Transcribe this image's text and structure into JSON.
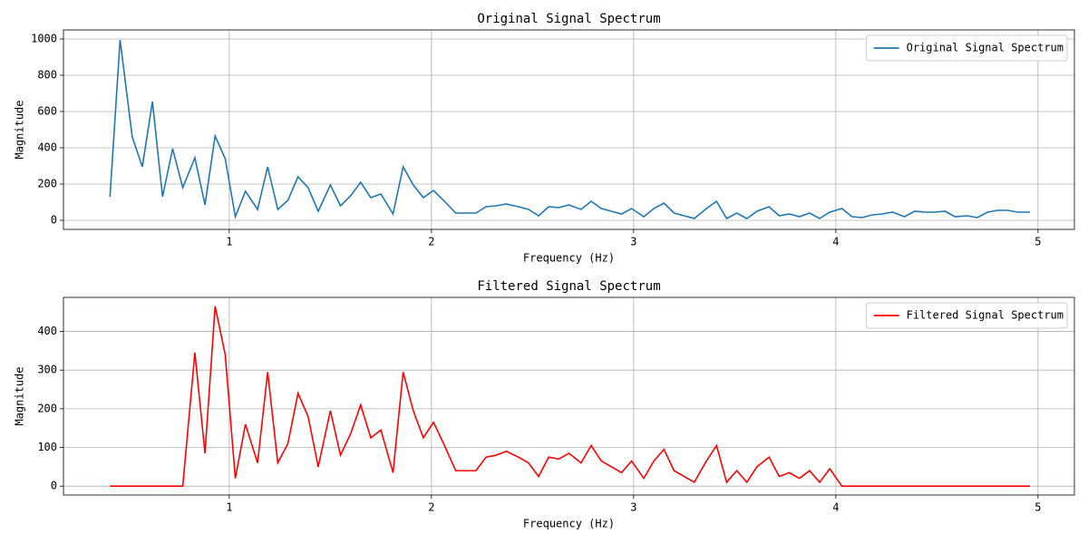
{
  "chart_data": [
    {
      "type": "line",
      "title": "Original Signal Spectrum",
      "x_label": "Frequency (Hz)",
      "y_label": "Magnitude",
      "x": [
        0.41,
        0.46,
        0.52,
        0.57,
        0.62,
        0.67,
        0.72,
        0.77,
        0.83,
        0.88,
        0.93,
        0.98,
        1.03,
        1.08,
        1.14,
        1.19,
        1.24,
        1.29,
        1.34,
        1.39,
        1.44,
        1.5,
        1.55,
        1.6,
        1.65,
        1.7,
        1.75,
        1.81,
        1.86,
        1.91,
        1.96,
        2.01,
        2.06,
        2.12,
        2.17,
        2.22,
        2.27,
        2.32,
        2.37,
        2.43,
        2.48,
        2.53,
        2.58,
        2.63,
        2.68,
        2.74,
        2.79,
        2.84,
        2.89,
        2.94,
        2.99,
        3.05,
        3.1,
        3.15,
        3.2,
        3.25,
        3.3,
        3.36,
        3.41,
        3.46,
        3.51,
        3.56,
        3.61,
        3.67,
        3.72,
        3.77,
        3.82,
        3.87,
        3.92,
        3.97,
        4.03,
        4.08,
        4.13,
        4.18,
        4.23,
        4.28,
        4.34,
        4.39,
        4.44,
        4.49,
        4.54,
        4.59,
        4.65,
        4.7,
        4.75,
        4.8,
        4.85,
        4.9,
        4.96
      ],
      "series": [
        {
          "name": "Original Signal Spectrum",
          "color": "#1f77b4",
          "values": [
            130,
            995,
            460,
            295,
            655,
            130,
            395,
            180,
            345,
            85,
            465,
            340,
            20,
            160,
            60,
            295,
            60,
            110,
            240,
            180,
            50,
            195,
            80,
            135,
            210,
            125,
            145,
            35,
            295,
            195,
            125,
            165,
            110,
            40,
            40,
            40,
            75,
            80,
            90,
            75,
            60,
            25,
            75,
            70,
            85,
            60,
            105,
            65,
            50,
            35,
            65,
            20,
            65,
            95,
            40,
            25,
            10,
            65,
            105,
            10,
            40,
            10,
            50,
            75,
            25,
            35,
            20,
            40,
            10,
            45,
            65,
            20,
            15,
            30,
            35,
            45,
            20,
            50,
            45,
            45,
            50,
            20,
            25,
            15,
            45,
            55,
            55,
            45,
            45
          ]
        }
      ],
      "xlim": [
        0.18,
        5.18
      ],
      "ylim": [
        -50,
        1050
      ],
      "xticks": [
        1,
        2,
        3,
        4,
        5
      ],
      "yticks": [
        0,
        200,
        400,
        600,
        800,
        1000
      ],
      "grid": true,
      "legend": "upper right"
    },
    {
      "type": "line",
      "title": "Filtered Signal Spectrum",
      "x_label": "Frequency (Hz)",
      "y_label": "Magnitude",
      "x": [
        0.41,
        0.46,
        0.52,
        0.57,
        0.62,
        0.67,
        0.72,
        0.77,
        0.83,
        0.88,
        0.93,
        0.98,
        1.03,
        1.08,
        1.14,
        1.19,
        1.24,
        1.29,
        1.34,
        1.39,
        1.44,
        1.5,
        1.55,
        1.6,
        1.65,
        1.7,
        1.75,
        1.81,
        1.86,
        1.91,
        1.96,
        2.01,
        2.06,
        2.12,
        2.17,
        2.22,
        2.27,
        2.32,
        2.37,
        2.43,
        2.48,
        2.53,
        2.58,
        2.63,
        2.68,
        2.74,
        2.79,
        2.84,
        2.89,
        2.94,
        2.99,
        3.05,
        3.1,
        3.15,
        3.2,
        3.25,
        3.3,
        3.36,
        3.41,
        3.46,
        3.51,
        3.56,
        3.61,
        3.67,
        3.72,
        3.77,
        3.82,
        3.87,
        3.92,
        3.97,
        4.03,
        4.08,
        4.13,
        4.18,
        4.23,
        4.28,
        4.34,
        4.39,
        4.44,
        4.49,
        4.54,
        4.59,
        4.65,
        4.7,
        4.75,
        4.8,
        4.85,
        4.9,
        4.96
      ],
      "series": [
        {
          "name": "Filtered Signal Spectrum",
          "color": "#ff0000",
          "values": [
            0,
            0,
            0,
            0,
            0,
            0,
            0,
            0,
            345,
            85,
            465,
            340,
            20,
            160,
            60,
            295,
            60,
            110,
            240,
            180,
            50,
            195,
            80,
            135,
            210,
            125,
            145,
            35,
            295,
            195,
            125,
            165,
            110,
            40,
            40,
            40,
            75,
            80,
            90,
            75,
            60,
            25,
            75,
            70,
            85,
            60,
            105,
            65,
            50,
            35,
            65,
            20,
            65,
            95,
            40,
            25,
            10,
            65,
            105,
            10,
            40,
            10,
            50,
            75,
            25,
            35,
            20,
            40,
            10,
            45,
            0,
            0,
            0,
            0,
            0,
            0,
            0,
            0,
            0,
            0,
            0,
            0,
            0,
            0,
            0,
            0,
            0,
            0,
            0
          ]
        }
      ],
      "xlim": [
        0.18,
        5.18
      ],
      "ylim": [
        -23,
        488
      ],
      "xticks": [
        1,
        2,
        3,
        4,
        5
      ],
      "yticks": [
        0,
        100,
        200,
        300,
        400
      ],
      "grid": true,
      "legend": "upper right"
    }
  ]
}
